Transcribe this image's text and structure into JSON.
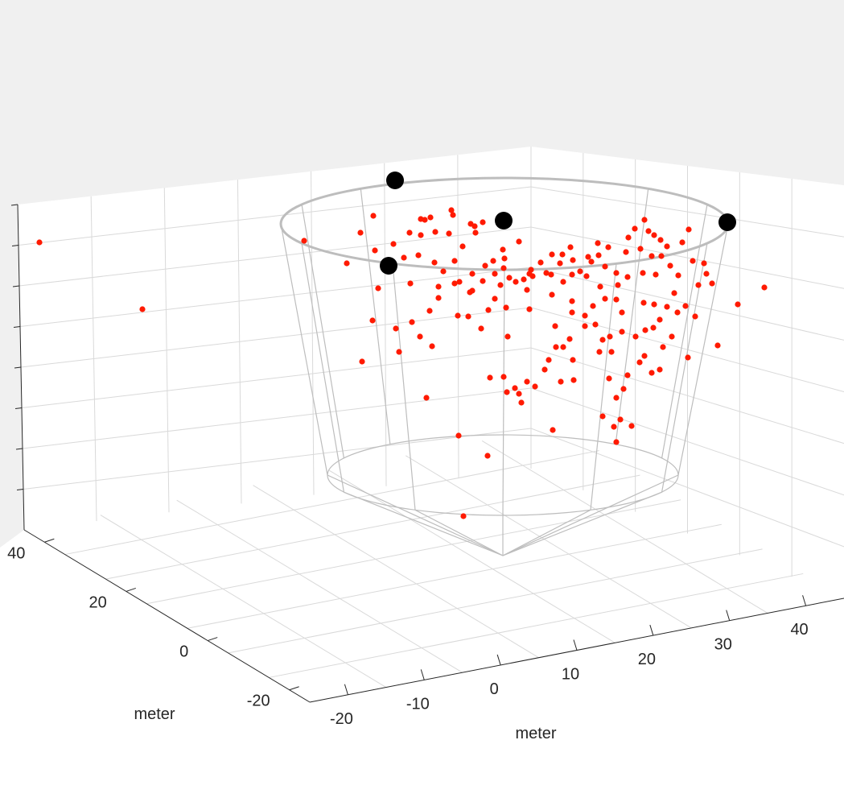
{
  "chart_data": {
    "type": "scatter3d",
    "title": "",
    "xlabel": "meter",
    "ylabel": "meter",
    "zlabel": "",
    "xlim": [
      -25,
      45
    ],
    "ylim": [
      -25,
      45
    ],
    "grid": true,
    "x_ticks": [
      "-20",
      "-10",
      "0",
      "10",
      "20",
      "30",
      "40"
    ],
    "y_ticks": [
      "-20",
      "0",
      "20",
      "40"
    ],
    "colors": {
      "points": "#ff1a00",
      "markers": "#000000",
      "funnel": "#bdbdbd",
      "grid": "#d9d9d9",
      "pane": "#ffffff",
      "figure": "#f0f0f0",
      "axis": "#262626"
    },
    "series": [
      {
        "marker": "red-dot",
        "count": 182
      },
      {
        "marker": "black-dot",
        "count": 4
      }
    ]
  }
}
